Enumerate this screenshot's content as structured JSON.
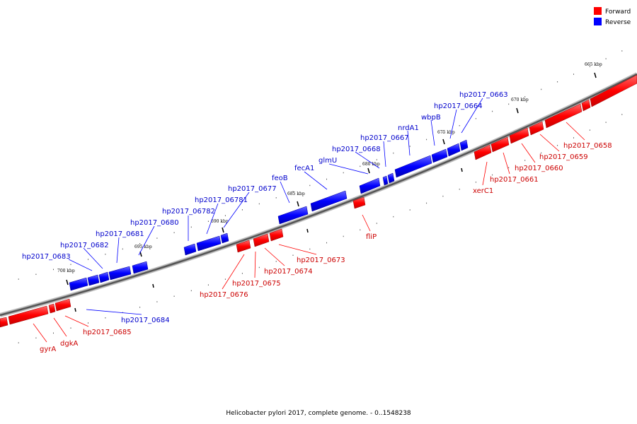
{
  "legend": [
    {
      "label": "Forward",
      "color": "#ff0000"
    },
    {
      "label": "Reverse",
      "color": "#0000ff"
    }
  ],
  "caption": "Helicobacter pylori 2017, complete genome. - 0..1548238",
  "colors": {
    "forward": "#ff0000",
    "reverse": "#0000ff",
    "backbone": "#666666"
  },
  "scale_labels": [
    "665 kbp",
    "670 kbp",
    "675 kbp",
    "680 kbp",
    "685 kbp",
    "690 kbp",
    "695 kbp",
    "700 kbp"
  ],
  "forward_genes": [
    {
      "name": "gyrA"
    },
    {
      "name": "dgkA"
    },
    {
      "name": "hp2017_0685"
    },
    {
      "name": "hp2017_0676"
    },
    {
      "name": "hp2017_0675"
    },
    {
      "name": "hp2017_0674"
    },
    {
      "name": "hp2017_0673"
    },
    {
      "name": "fliP"
    },
    {
      "name": "xerC1"
    },
    {
      "name": "hp2017_0661"
    },
    {
      "name": "hp2017_0660"
    },
    {
      "name": "hp2017_0659"
    },
    {
      "name": "hp2017_0658"
    }
  ],
  "reverse_genes": [
    {
      "name": "hp2017_0683"
    },
    {
      "name": "hp2017_0682"
    },
    {
      "name": "hp2017_0681"
    },
    {
      "name": "hp2017_0680"
    },
    {
      "name": "hp2017_06782"
    },
    {
      "name": "hp2017_06781"
    },
    {
      "name": "hp2017_0677"
    },
    {
      "name": "feoB"
    },
    {
      "name": "fecA1"
    },
    {
      "name": "glmU"
    },
    {
      "name": "hp2017_0668"
    },
    {
      "name": "hp2017_0667"
    },
    {
      "name": "nrdA1"
    },
    {
      "name": "wbpB"
    },
    {
      "name": "hp2017_0664"
    },
    {
      "name": "hp2017_0663"
    },
    {
      "name": "hp2017_0684"
    }
  ]
}
